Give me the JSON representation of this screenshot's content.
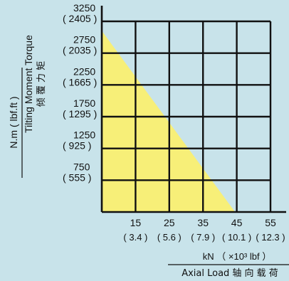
{
  "chart_data": {
    "type": "area",
    "ylabel_en": "N.m ( lbf.ft )",
    "ylabel_cn_line1": "Tilting Moment Torque",
    "ylabel_cn_line2": "倾 覆 力 矩",
    "xlabel_line1": "kN （ ×10³ lbf ）",
    "xlabel_line2": "Axial Load 轴 向 载 荷",
    "xlim": [
      5,
      55
    ],
    "ylim": [
      250,
      3250
    ],
    "x_ticks": [
      {
        "value": 15,
        "label": "15",
        "sub": "( 3.4 )"
      },
      {
        "value": 25,
        "label": "25",
        "sub": "( 5.6 )"
      },
      {
        "value": 35,
        "label": "35",
        "sub": "( 7.9 )"
      },
      {
        "value": 45,
        "label": "45",
        "sub": "( 10.1 )"
      },
      {
        "value": 55,
        "label": "55",
        "sub": "( 12.3 )"
      }
    ],
    "y_ticks": [
      {
        "value": 3250,
        "label": "3250",
        "sub": "( 2405 )"
      },
      {
        "value": 2750,
        "label": "2750",
        "sub": "( 2035 )"
      },
      {
        "value": 2250,
        "label": "2250",
        "sub": "( 1665 )"
      },
      {
        "value": 1750,
        "label": "1750",
        "sub": "( 1295 )"
      },
      {
        "value": 1250,
        "label": "1250",
        "sub": "( 925 )"
      },
      {
        "value": 750,
        "label": "750",
        "sub": "( 555 )"
      }
    ],
    "series": [
      {
        "x": [
          5,
          44.5
        ],
        "y": [
          3100,
          250
        ],
        "fill": "#f7ef78"
      }
    ],
    "grid": true
  }
}
